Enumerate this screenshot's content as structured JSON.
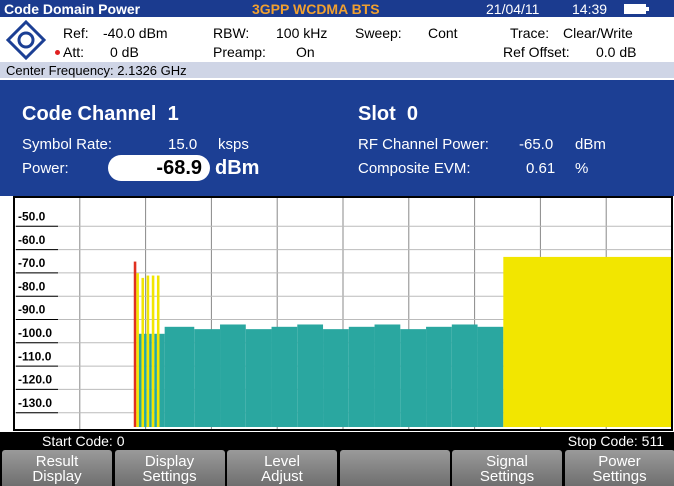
{
  "header": {
    "title": "Code Domain Power",
    "standard": "3GPP WCDMA BTS",
    "date": "21/04/11",
    "time": "14:39"
  },
  "settings": {
    "rows": [
      [
        "Ref:",
        "-40.0 dBm",
        "RBW:",
        "100 kHz",
        "Sweep:",
        "Cont",
        "Trace:",
        "Clear/Write"
      ],
      [
        "Att:",
        "0 dB",
        "Preamp:",
        "On",
        "Ref Offset:",
        "0.0 dB"
      ]
    ],
    "center_frequency": "Center Frequency: 2.1326 GHz"
  },
  "panel": {
    "channel": "Code Channel  1",
    "slot": "Slot  0",
    "symbol_rate_label": "Symbol Rate:",
    "symbol_rate": "15.0",
    "symbol_rate_unit": "ksps",
    "power_label": "Power:",
    "power": "-68.9",
    "power_unit": "dBm",
    "rf_power_label": "RF Channel Power:",
    "rf_power": "-65.0",
    "rf_power_unit": "dBm",
    "evm_label": "Composite EVM:",
    "evm": "0.61",
    "evm_unit": "%"
  },
  "chart_data": {
    "type": "bar",
    "x": [
      93,
      95,
      97,
      99,
      101,
      103,
      105,
      107,
      109,
      111,
      113,
      117,
      140,
      160,
      180,
      200,
      220,
      240,
      260,
      280,
      300,
      320,
      340,
      360,
      380
    ],
    "values": [
      -69,
      -74,
      -100,
      -76,
      -100,
      -75,
      -100,
      -75,
      -100,
      -75,
      -100,
      -97,
      -98,
      -96,
      -98,
      -97,
      -96,
      -98,
      -97,
      -96,
      -98,
      -97,
      -96,
      -97,
      -67
    ],
    "colors": [
      "#e03020",
      "#f2e600",
      "#2aa7a0",
      "#f2e600",
      "#2aa7a0",
      "#f2e600",
      "#2aa7a0",
      "#f2e600",
      "#2aa7a0",
      "#f2e600",
      "#2aa7a0",
      "#2aa7a0",
      "#2aa7a0",
      "#2aa7a0",
      "#2aa7a0",
      "#2aa7a0",
      "#2aa7a0",
      "#2aa7a0",
      "#2aa7a0",
      "#2aa7a0",
      "#2aa7a0",
      "#2aa7a0",
      "#2aa7a0",
      "#2aa7a0",
      "#f2e600"
    ],
    "xlim": [
      0,
      511
    ],
    "ylim": [
      -140,
      -40
    ],
    "yticks": [
      {
        "value": -50,
        "label": "-50.0"
      },
      {
        "value": -60,
        "label": "-60.0"
      },
      {
        "value": -70,
        "label": "-70.0"
      },
      {
        "value": -80,
        "label": "-80.0"
      },
      {
        "value": -90,
        "label": "-90.0"
      },
      {
        "value": -100,
        "label": "-100.0"
      },
      {
        "value": -110,
        "label": "-110.0"
      },
      {
        "value": -120,
        "label": "-120.0"
      },
      {
        "value": -130,
        "label": "-130.0"
      }
    ],
    "grid": true,
    "start_code": "Start Code: 0",
    "stop_code": "Stop Code: 511"
  },
  "softkeys": [
    [
      "Result",
      "Display"
    ],
    [
      "Display",
      "Settings"
    ],
    [
      "Level",
      "Adjust"
    ],
    [],
    [
      "Signal",
      "Settings"
    ],
    [
      "Power",
      "Settings"
    ]
  ]
}
